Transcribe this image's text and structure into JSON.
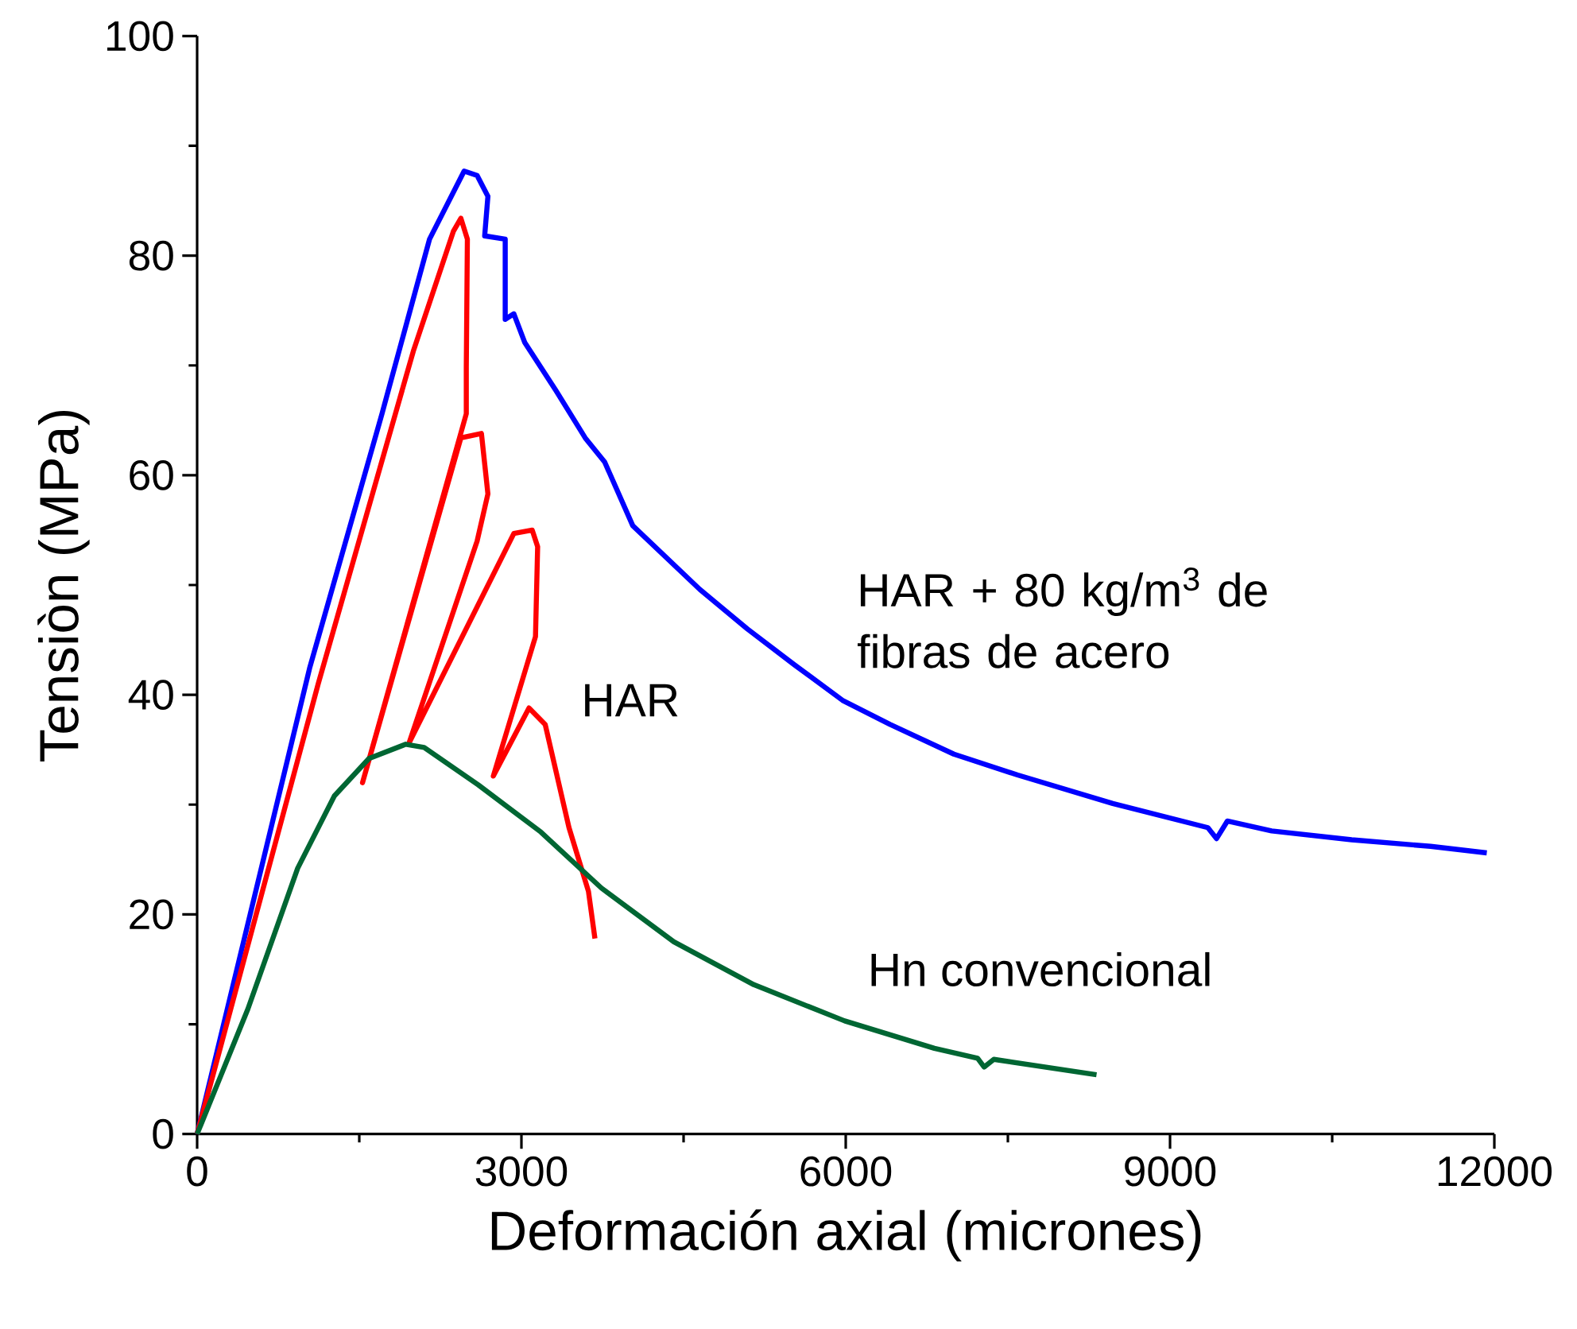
{
  "chart_data": {
    "type": "line",
    "xlabel": "Deformación axial (micrones)",
    "ylabel": "Tensiòn (MPa)",
    "xlim": [
      0,
      12000
    ],
    "ylim": [
      0,
      100
    ],
    "xticks": [
      0,
      3000,
      6000,
      9000,
      12000
    ],
    "yticks": [
      0,
      20,
      40,
      60,
      80,
      100
    ],
    "grid": false,
    "legend": false,
    "marker": "none",
    "line_style": "solid",
    "series": [
      {
        "name": "HAR + 80 kg/m$^{3}$ de fibras de acero",
        "color": "#0000ff",
        "x": [
          0,
          1040,
          1710,
          2150,
          2470,
          2590,
          2690,
          2660,
          2850,
          2850,
          2930,
          3030,
          3320,
          3590,
          3770,
          4030,
          4650,
          5090,
          5530,
          5970,
          6410,
          7000,
          7590,
          8470,
          9350,
          9430,
          9530,
          9940,
          10680,
          11410,
          11930
        ],
        "values": [
          0,
          42.4,
          65.6,
          81.5,
          87.7,
          87.3,
          85.4,
          81.8,
          81.5,
          74.2,
          74.7,
          72.1,
          67.7,
          63.4,
          61.2,
          55.4,
          49.6,
          46.0,
          42.7,
          39.5,
          37.3,
          34.6,
          32.7,
          30.1,
          27.9,
          26.9,
          28.5,
          27.6,
          26.8,
          26.2,
          25.6
        ]
      },
      {
        "name": "HAR",
        "color": "#ff0000",
        "x": [
          0,
          1120,
          2000,
          2370,
          2440,
          2500,
          2490,
          2490,
          1530,
          2440,
          2630,
          2690,
          2590,
          1960,
          2930,
          3100,
          3150,
          3130,
          2740,
          3070,
          3220,
          3440,
          3620,
          3680
        ],
        "values": [
          0,
          41.0,
          71.3,
          82.2,
          83.4,
          81.5,
          69.9,
          65.6,
          32.0,
          63.4,
          63.8,
          58.3,
          54.0,
          35.6,
          54.7,
          55.0,
          53.5,
          45.3,
          32.6,
          38.8,
          37.3,
          27.9,
          22.1,
          17.8
        ]
      },
      {
        "name": "Hn convencional",
        "color": "#006633",
        "x": [
          0,
          470,
          930,
          1270,
          1590,
          1930,
          2100,
          2600,
          3180,
          3740,
          4410,
          5150,
          5990,
          6820,
          7220,
          7280,
          7370,
          8320
        ],
        "values": [
          0,
          11.4,
          24.2,
          30.8,
          34.2,
          35.5,
          35.2,
          31.8,
          27.5,
          22.4,
          17.5,
          13.6,
          10.3,
          7.8,
          6.9,
          6.1,
          6.8,
          5.4
        ]
      }
    ]
  }
}
